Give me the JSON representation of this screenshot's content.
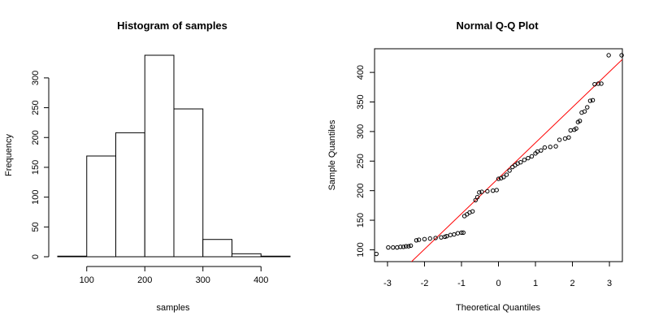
{
  "chart_data": [
    {
      "type": "bar",
      "title": "Histogram of samples",
      "xlabel": "samples",
      "ylabel": "Frequency",
      "bins": [
        [
          50,
          100
        ],
        [
          100,
          150
        ],
        [
          150,
          200
        ],
        [
          200,
          250
        ],
        [
          250,
          300
        ],
        [
          300,
          350
        ],
        [
          350,
          400
        ],
        [
          400,
          450
        ]
      ],
      "values": [
        1,
        169,
        208,
        338,
        248,
        29,
        5,
        1
      ],
      "xlim": [
        50,
        450
      ],
      "ylim": [
        0,
        338
      ],
      "xticks": [
        100,
        200,
        300,
        400
      ],
      "yticks": [
        0,
        50,
        100,
        150,
        200,
        250,
        300
      ],
      "grid": false
    },
    {
      "type": "scatter",
      "title": "Normal Q-Q Plot",
      "xlabel": "Theoretical Quantiles",
      "ylabel": "Sample Quantiles",
      "xlim": [
        -3.35,
        3.35
      ],
      "ylim": [
        80,
        440
      ],
      "xticks": [
        -3,
        -2,
        -1,
        0,
        1,
        2,
        3
      ],
      "yticks": [
        100,
        150,
        200,
        250,
        300,
        350,
        400
      ],
      "reference_line": {
        "intercept": 221,
        "slope": 60,
        "color": "#ff0000"
      },
      "points": [
        [
          -3.3,
          93
        ],
        [
          -2.98,
          104
        ],
        [
          -2.85,
          104
        ],
        [
          -2.74,
          104
        ],
        [
          -2.65,
          105
        ],
        [
          -2.57,
          105
        ],
        [
          -2.5,
          106
        ],
        [
          -2.43,
          106
        ],
        [
          -2.37,
          107
        ],
        [
          -2.22,
          116
        ],
        [
          -2.15,
          117
        ],
        [
          -2.0,
          118
        ],
        [
          -1.85,
          119
        ],
        [
          -1.7,
          120
        ],
        [
          -1.55,
          121
        ],
        [
          -1.45,
          122
        ],
        [
          -1.4,
          123
        ],
        [
          -1.3,
          125
        ],
        [
          -1.2,
          126
        ],
        [
          -1.1,
          128
        ],
        [
          -1.0,
          129
        ],
        [
          -0.95,
          129
        ],
        [
          -0.92,
          157
        ],
        [
          -0.85,
          160
        ],
        [
          -0.78,
          163
        ],
        [
          -0.7,
          165
        ],
        [
          -0.62,
          184
        ],
        [
          -0.57,
          189
        ],
        [
          -0.52,
          197
        ],
        [
          -0.45,
          198
        ],
        [
          -0.3,
          199
        ],
        [
          -0.15,
          200
        ],
        [
          -0.05,
          201
        ],
        [
          0.0,
          220
        ],
        [
          0.07,
          221
        ],
        [
          0.14,
          223
        ],
        [
          0.22,
          227
        ],
        [
          0.3,
          234
        ],
        [
          0.38,
          240
        ],
        [
          0.45,
          243
        ],
        [
          0.52,
          246
        ],
        [
          0.6,
          248
        ],
        [
          0.7,
          252
        ],
        [
          0.8,
          255
        ],
        [
          0.9,
          258
        ],
        [
          1.0,
          263
        ],
        [
          1.05,
          266
        ],
        [
          1.15,
          268
        ],
        [
          1.25,
          273
        ],
        [
          1.4,
          274
        ],
        [
          1.55,
          275
        ],
        [
          1.65,
          286
        ],
        [
          1.8,
          288
        ],
        [
          1.9,
          290
        ],
        [
          1.95,
          302
        ],
        [
          2.05,
          303
        ],
        [
          2.1,
          305
        ],
        [
          2.15,
          316
        ],
        [
          2.2,
          318
        ],
        [
          2.25,
          332
        ],
        [
          2.33,
          334
        ],
        [
          2.4,
          341
        ],
        [
          2.48,
          352
        ],
        [
          2.55,
          353
        ],
        [
          2.6,
          380
        ],
        [
          2.7,
          381
        ],
        [
          2.78,
          381
        ],
        [
          2.98,
          429
        ],
        [
          3.33,
          429
        ]
      ]
    }
  ]
}
